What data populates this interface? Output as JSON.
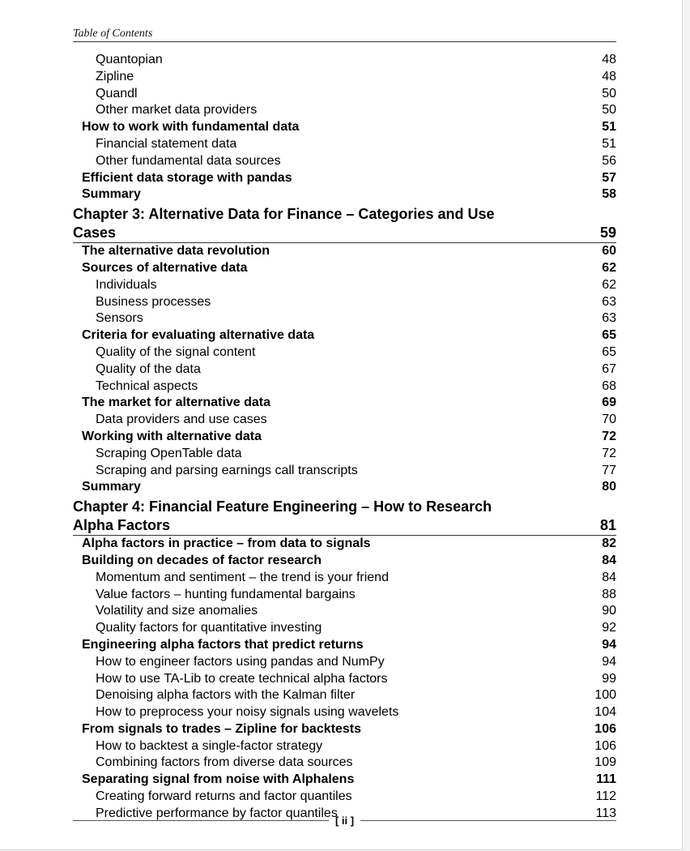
{
  "header": {
    "title": "Table of Contents"
  },
  "entries": [
    {
      "level": 2,
      "title": "Quantopian",
      "page": "48"
    },
    {
      "level": 2,
      "title": "Zipline",
      "page": "48"
    },
    {
      "level": 2,
      "title": "Quandl",
      "page": "50"
    },
    {
      "level": 2,
      "title": "Other market data providers",
      "page": "50"
    },
    {
      "level": 1,
      "title": "How to work with fundamental data",
      "page": "51"
    },
    {
      "level": 2,
      "title": "Financial statement data",
      "page": "51"
    },
    {
      "level": 2,
      "title": "Other fundamental data sources",
      "page": "56"
    },
    {
      "level": 1,
      "title": "Efficient data storage with pandas",
      "page": "57"
    },
    {
      "level": 1,
      "title": "Summary",
      "page": "58"
    },
    {
      "level": 0,
      "title": "Chapter 3: Alternative Data for Finance – Categories and Use Cases",
      "page": "59"
    },
    {
      "level": 1,
      "title": "The alternative data revolution",
      "page": "60"
    },
    {
      "level": 1,
      "title": "Sources of alternative data",
      "page": "62"
    },
    {
      "level": 2,
      "title": "Individuals",
      "page": "62"
    },
    {
      "level": 2,
      "title": "Business processes",
      "page": "63"
    },
    {
      "level": 2,
      "title": "Sensors",
      "page": "63"
    },
    {
      "level": 1,
      "title": "Criteria for evaluating alternative data",
      "page": "65"
    },
    {
      "level": 2,
      "title": "Quality of the signal content",
      "page": "65"
    },
    {
      "level": 2,
      "title": "Quality of the data",
      "page": "67"
    },
    {
      "level": 2,
      "title": "Technical aspects",
      "page": "68"
    },
    {
      "level": 1,
      "title": "The market for alternative data",
      "page": "69"
    },
    {
      "level": 2,
      "title": "Data providers and use cases",
      "page": "70"
    },
    {
      "level": 1,
      "title": "Working with alternative data",
      "page": "72"
    },
    {
      "level": 2,
      "title": "Scraping OpenTable data",
      "page": "72"
    },
    {
      "level": 2,
      "title": "Scraping and parsing earnings call transcripts",
      "page": "77"
    },
    {
      "level": 1,
      "title": "Summary",
      "page": "80"
    },
    {
      "level": 0,
      "title": "Chapter 4: Financial Feature Engineering – How to Research Alpha Factors",
      "page": "81"
    },
    {
      "level": 1,
      "title": "Alpha factors in practice – from data to signals",
      "page": "82"
    },
    {
      "level": 1,
      "title": "Building on decades of factor research",
      "page": "84"
    },
    {
      "level": 2,
      "title": "Momentum and sentiment – the trend is your friend",
      "page": "84"
    },
    {
      "level": 2,
      "title": "Value factors – hunting fundamental bargains",
      "page": "88"
    },
    {
      "level": 2,
      "title": "Volatility and size anomalies",
      "page": "90"
    },
    {
      "level": 2,
      "title": "Quality factors for quantitative investing",
      "page": "92"
    },
    {
      "level": 1,
      "title": "Engineering alpha factors that predict returns",
      "page": "94"
    },
    {
      "level": 2,
      "title": "How to engineer factors using pandas and NumPy",
      "page": "94"
    },
    {
      "level": 2,
      "title": "How to use TA-Lib to create technical alpha factors",
      "page": "99"
    },
    {
      "level": 2,
      "title": "Denoising alpha factors with the Kalman filter",
      "page": "100"
    },
    {
      "level": 2,
      "title": "How to preprocess your noisy signals using wavelets",
      "page": "104"
    },
    {
      "level": 1,
      "title": "From signals to trades – Zipline for backtests",
      "page": "106"
    },
    {
      "level": 2,
      "title": "How to backtest a single-factor strategy",
      "page": "106"
    },
    {
      "level": 2,
      "title": "Combining factors from diverse data sources",
      "page": "109"
    },
    {
      "level": 1,
      "title": "Separating signal from noise with Alphalens",
      "page": "111"
    },
    {
      "level": 2,
      "title": "Creating forward returns and factor quantiles",
      "page": "112"
    },
    {
      "level": 2,
      "title": "Predictive performance by factor quantiles",
      "page": "113"
    }
  ],
  "footer": {
    "page_number": "[ ii ]"
  }
}
